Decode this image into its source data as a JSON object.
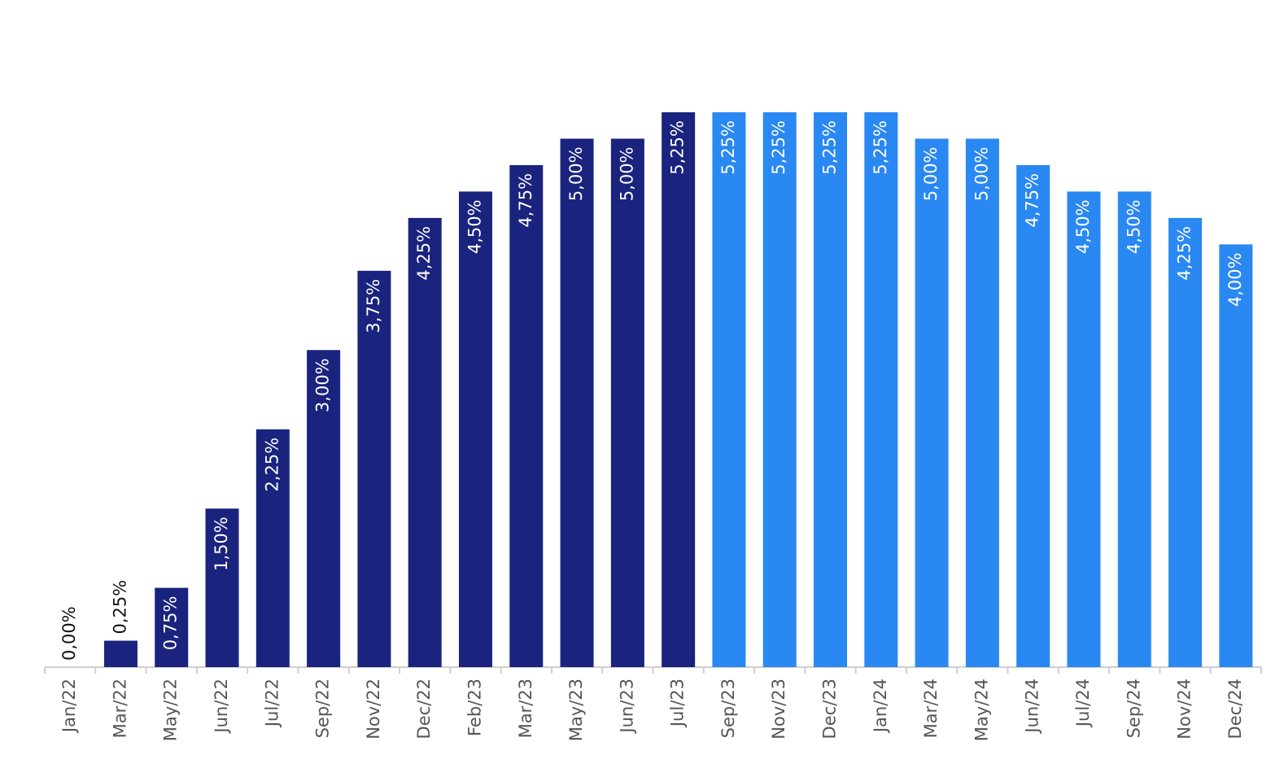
{
  "chart_data": {
    "type": "bar",
    "categories": [
      "Jan/22",
      "Mar/22",
      "May/22",
      "Jun/22",
      "Jul/22",
      "Sep/22",
      "Nov/22",
      "Dec/22",
      "Feb/23",
      "Mar/23",
      "May/23",
      "Jun/23",
      "Jul/23",
      "Sep/23",
      "Nov/23",
      "Dec/23",
      "Jan/24",
      "Mar/24",
      "May/24",
      "Jun/24",
      "Jul/24",
      "Sep/24",
      "Nov/24",
      "Dec/24"
    ],
    "values": [
      0,
      0.25,
      0.75,
      1.5,
      2.25,
      3,
      3.75,
      4.25,
      4.5,
      4.75,
      5,
      5,
      5.25,
      5.25,
      5.25,
      5.25,
      5.25,
      5,
      5,
      4.75,
      4.5,
      4.5,
      4.25,
      4
    ],
    "value_labels": [
      "0,00%",
      "0,25%",
      "0,75%",
      "1,50%",
      "2,25%",
      "3,00%",
      "3,75%",
      "4,25%",
      "4,50%",
      "4,75%",
      "5,00%",
      "5,00%",
      "5,25%",
      "5,25%",
      "5,25%",
      "5,25%",
      "5,25%",
      "5,00%",
      "5,00%",
      "4,75%",
      "4,50%",
      "4,50%",
      "4,25%",
      "4,00%"
    ],
    "colors": [
      "#1a237e",
      "#1a237e",
      "#1a237e",
      "#1a237e",
      "#1a237e",
      "#1a237e",
      "#1a237e",
      "#1a237e",
      "#1a237e",
      "#1a237e",
      "#1a237e",
      "#1a237e",
      "#1a237e",
      "#2a88f2",
      "#2a88f2",
      "#2a88f2",
      "#2a88f2",
      "#2a88f2",
      "#2a88f2",
      "#2a88f2",
      "#2a88f2",
      "#2a88f2",
      "#2a88f2",
      "#2a88f2"
    ],
    "ylim": [
      0,
      5.25
    ]
  }
}
